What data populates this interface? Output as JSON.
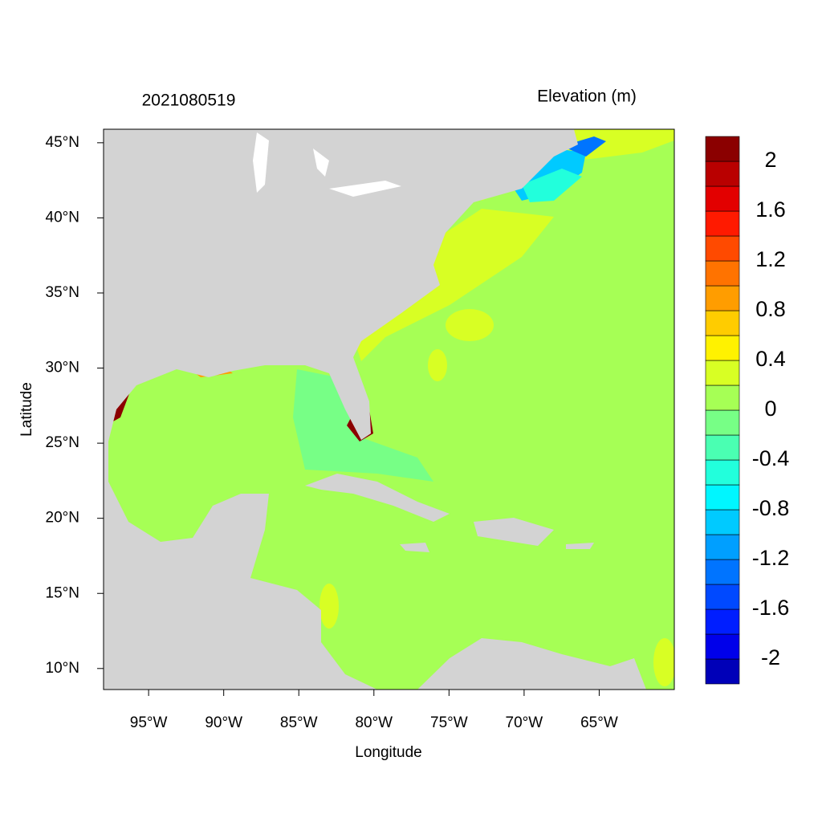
{
  "title_left": "2021080519",
  "title_right": "Elevation (m)",
  "map": {
    "xlabel": "Longitude",
    "ylabel": "Latitude",
    "xlim": [
      -98,
      -60
    ],
    "ylim": [
      8.6,
      45.9
    ],
    "xticks": [
      {
        "value": -95,
        "label": "95°W"
      },
      {
        "value": -90,
        "label": "90°W"
      },
      {
        "value": -85,
        "label": "85°W"
      },
      {
        "value": -80,
        "label": "80°W"
      },
      {
        "value": -75,
        "label": "75°W"
      },
      {
        "value": -70,
        "label": "70°W"
      },
      {
        "value": -65,
        "label": "65°W"
      }
    ],
    "yticks": [
      {
        "value": 10,
        "label": "10°N"
      },
      {
        "value": 15,
        "label": "15°N"
      },
      {
        "value": 20,
        "label": "20°N"
      },
      {
        "value": 25,
        "label": "25°N"
      },
      {
        "value": 30,
        "label": "30°N"
      },
      {
        "value": 35,
        "label": "35°N"
      },
      {
        "value": 40,
        "label": "40°N"
      },
      {
        "value": 45,
        "label": "45°N"
      }
    ],
    "land_color": "#d3d3d3",
    "ocean_color": "#a6ff55"
  },
  "colorbar": {
    "clim": [
      -2.2,
      2.2
    ],
    "ticks": [
      -2,
      -1.6,
      -1.2,
      -0.8,
      -0.4,
      0,
      0.4,
      0.8,
      1.2,
      1.6,
      2
    ],
    "colors": [
      "#0000b8",
      "#0000ea",
      "#001eff",
      "#0049ff",
      "#0074ff",
      "#009fff",
      "#00caff",
      "#00f6ff",
      "#22ffdc",
      "#4affb2",
      "#77ff86",
      "#a6ff55",
      "#d8ff24",
      "#fff200",
      "#ffcc00",
      "#ff9d00",
      "#ff7300",
      "#ff4a00",
      "#ff1a00",
      "#e30000",
      "#b90000",
      "#8b0000"
    ]
  }
}
